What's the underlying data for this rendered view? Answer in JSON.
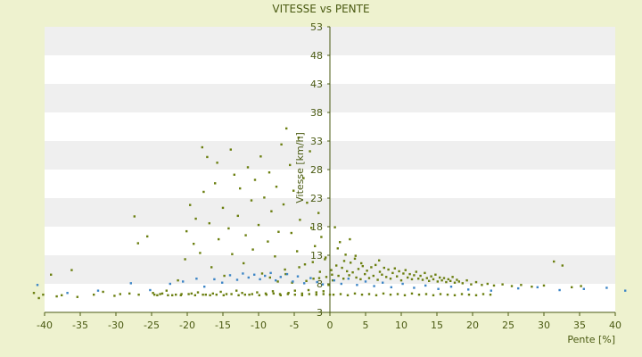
{
  "chart_data": {
    "type": "scatter",
    "title": "VITESSE vs PENTE",
    "xlabel": "Pente [%]",
    "ylabel": "Vitesse [km/h]",
    "xlim": [
      -40,
      40
    ],
    "ylim": [
      3,
      53
    ],
    "x_ticks": [
      -40,
      -35,
      -30,
      -25,
      -20,
      -15,
      -10,
      -5,
      0,
      5,
      10,
      15,
      20,
      25,
      30,
      35,
      40
    ],
    "y_ticks": [
      3,
      8,
      13,
      18,
      23,
      28,
      33,
      38,
      43,
      48,
      53
    ],
    "grid": "horizontal alternating bands",
    "legend": "none",
    "colors": {
      "background": "#eef2cf",
      "band_light": "#ffffff",
      "band_dark": "#efefef",
      "axis": "#4a5a12",
      "series_main": "#6b7f10",
      "series_secondary": "#3d85c6"
    },
    "series": [
      {
        "color": "#6b7f10",
        "points": [
          [
            -41.5,
            6.4
          ],
          [
            -40.8,
            5.5
          ],
          [
            -40.2,
            6.1
          ],
          [
            -39.1,
            9.6
          ],
          [
            -38.3,
            5.8
          ],
          [
            -37.6,
            6.0
          ],
          [
            -36.2,
            10.4
          ],
          [
            -35.4,
            5.7
          ],
          [
            -33.1,
            6.1
          ],
          [
            -31.8,
            6.6
          ],
          [
            -30.2,
            5.9
          ],
          [
            -29.4,
            6.2
          ],
          [
            -28.1,
            6.3
          ],
          [
            -27.4,
            19.8
          ],
          [
            -26.8,
            6.1
          ],
          [
            -26.9,
            15.1
          ],
          [
            -25.6,
            16.3
          ],
          [
            -24.8,
            6.4
          ],
          [
            -24.2,
            6.0
          ],
          [
            -23.5,
            6.3
          ],
          [
            -22.9,
            6.8
          ],
          [
            -22.1,
            6.0
          ],
          [
            -21.3,
            8.6
          ],
          [
            -20.8,
            6.2
          ],
          [
            -20.3,
            12.3
          ],
          [
            -20.1,
            17.2
          ],
          [
            -19.6,
            21.8
          ],
          [
            -19.4,
            6.3
          ],
          [
            -19.1,
            15.0
          ],
          [
            -18.8,
            19.4
          ],
          [
            -18.5,
            6.5
          ],
          [
            -18.2,
            13.4
          ],
          [
            -17.9,
            31.9
          ],
          [
            -17.7,
            24.1
          ],
          [
            -17.4,
            6.1
          ],
          [
            -17.2,
            30.2
          ],
          [
            -16.9,
            18.6
          ],
          [
            -16.6,
            10.9
          ],
          [
            -16.4,
            6.3
          ],
          [
            -16.1,
            25.6
          ],
          [
            -15.8,
            29.2
          ],
          [
            -15.6,
            15.8
          ],
          [
            -15.3,
            6.6
          ],
          [
            -15.0,
            21.3
          ],
          [
            -14.8,
            9.4
          ],
          [
            -14.5,
            6.2
          ],
          [
            -14.2,
            17.7
          ],
          [
            -13.9,
            31.5
          ],
          [
            -13.7,
            13.2
          ],
          [
            -13.4,
            27.1
          ],
          [
            -13.1,
            6.8
          ],
          [
            -12.9,
            19.9
          ],
          [
            -12.6,
            24.7
          ],
          [
            -12.3,
            6.4
          ],
          [
            -12.1,
            11.6
          ],
          [
            -11.8,
            16.5
          ],
          [
            -11.5,
            28.4
          ],
          [
            -11.3,
            6.1
          ],
          [
            -11.0,
            22.6
          ],
          [
            -10.8,
            14.0
          ],
          [
            -10.5,
            26.2
          ],
          [
            -10.2,
            6.5
          ],
          [
            -10.0,
            18.3
          ],
          [
            -9.7,
            30.3
          ],
          [
            -9.5,
            9.8
          ],
          [
            -9.2,
            23.1
          ],
          [
            -9.0,
            6.3
          ],
          [
            -8.7,
            15.4
          ],
          [
            -8.5,
            27.5
          ],
          [
            -8.2,
            20.7
          ],
          [
            -8.0,
            6.7
          ],
          [
            -7.7,
            12.8
          ],
          [
            -7.5,
            25.0
          ],
          [
            -7.2,
            17.1
          ],
          [
            -7.0,
            6.2
          ],
          [
            -6.8,
            32.4
          ],
          [
            -6.5,
            21.9
          ],
          [
            -6.3,
            10.5
          ],
          [
            -6.1,
            35.2
          ],
          [
            -5.8,
            6.4
          ],
          [
            -5.6,
            28.8
          ],
          [
            -5.4,
            16.9
          ],
          [
            -5.1,
            24.3
          ],
          [
            -4.9,
            6.8
          ],
          [
            -4.6,
            13.7
          ],
          [
            -4.4,
            33.6
          ],
          [
            -4.2,
            19.2
          ],
          [
            -3.9,
            6.3
          ],
          [
            -3.7,
            26.5
          ],
          [
            -3.5,
            11.4
          ],
          [
            -3.2,
            22.2
          ],
          [
            -3.0,
            6.9
          ],
          [
            -2.8,
            31.2
          ],
          [
            -2.6,
            17.8
          ],
          [
            -2.3,
            8.9
          ],
          [
            -2.1,
            14.6
          ],
          [
            -1.9,
            6.5
          ],
          [
            -1.6,
            20.4
          ],
          [
            -1.4,
            10.1
          ],
          [
            -1.2,
            16.2
          ],
          [
            -0.9,
            6.7
          ],
          [
            -0.7,
            12.3
          ],
          [
            -0.5,
            9.2
          ],
          [
            -0.2,
            7.8
          ],
          [
            0.0,
            6.1
          ],
          [
            0.2,
            10.4
          ],
          [
            0.4,
            8.6
          ],
          [
            0.7,
            17.9
          ],
          [
            0.9,
            11.2
          ],
          [
            1.2,
            9.4
          ],
          [
            1.4,
            15.3
          ],
          [
            1.7,
            10.8
          ],
          [
            1.9,
            8.9
          ],
          [
            2.2,
            13.1
          ],
          [
            2.4,
            10.2
          ],
          [
            2.7,
            9.5
          ],
          [
            2.9,
            11.7
          ],
          [
            3.2,
            10.0
          ],
          [
            3.5,
            12.4
          ],
          [
            3.7,
            9.1
          ],
          [
            4.0,
            10.6
          ],
          [
            4.3,
            8.8
          ],
          [
            4.6,
            11.1
          ],
          [
            4.9,
            9.7
          ],
          [
            5.2,
            10.3
          ],
          [
            5.5,
            9.0
          ],
          [
            5.8,
            10.9
          ],
          [
            6.1,
            9.4
          ],
          [
            6.4,
            11.3
          ],
          [
            6.7,
            8.7
          ],
          [
            7.0,
            10.1
          ],
          [
            7.3,
            9.6
          ],
          [
            7.6,
            10.8
          ],
          [
            7.9,
            9.2
          ],
          [
            8.2,
            10.5
          ],
          [
            8.5,
            8.9
          ],
          [
            8.8,
            9.9
          ],
          [
            9.1,
            10.7
          ],
          [
            9.4,
            9.3
          ],
          [
            9.7,
            10.2
          ],
          [
            10.0,
            8.6
          ],
          [
            10.3,
            9.8
          ],
          [
            10.6,
            10.4
          ],
          [
            10.9,
            9.1
          ],
          [
            11.2,
            9.7
          ],
          [
            11.5,
            8.8
          ],
          [
            11.8,
            9.5
          ],
          [
            12.1,
            10.1
          ],
          [
            12.4,
            8.9
          ],
          [
            12.7,
            9.4
          ],
          [
            13.0,
            8.7
          ],
          [
            13.3,
            9.9
          ],
          [
            13.6,
            9.0
          ],
          [
            13.9,
            8.5
          ],
          [
            14.2,
            9.3
          ],
          [
            14.5,
            8.8
          ],
          [
            14.8,
            9.6
          ],
          [
            15.1,
            8.4
          ],
          [
            15.4,
            9.1
          ],
          [
            15.7,
            8.6
          ],
          [
            16.0,
            9.0
          ],
          [
            16.3,
            8.3
          ],
          [
            16.6,
            8.8
          ],
          [
            16.9,
            8.5
          ],
          [
            17.2,
            9.2
          ],
          [
            17.5,
            8.2
          ],
          [
            17.8,
            8.7
          ],
          [
            18.1,
            8.4
          ],
          [
            18.6,
            8.1
          ],
          [
            19.2,
            8.6
          ],
          [
            19.8,
            7.9
          ],
          [
            20.5,
            8.3
          ],
          [
            21.3,
            7.8
          ],
          [
            22.1,
            8.0
          ],
          [
            23.0,
            7.7
          ],
          [
            24.2,
            7.9
          ],
          [
            25.5,
            7.6
          ],
          [
            26.8,
            7.8
          ],
          [
            28.3,
            7.5
          ],
          [
            30.0,
            7.7
          ],
          [
            31.4,
            11.9
          ],
          [
            32.6,
            11.2
          ],
          [
            33.9,
            7.4
          ],
          [
            35.2,
            7.6
          ],
          [
            -24.6,
            6.1
          ],
          [
            -23.8,
            6.2
          ],
          [
            -22.7,
            6.0
          ],
          [
            -21.6,
            6.1
          ],
          [
            -20.9,
            6.0
          ],
          [
            -19.8,
            6.2
          ],
          [
            -18.9,
            6.0
          ],
          [
            -17.8,
            6.1
          ],
          [
            -16.8,
            6.0
          ],
          [
            -15.9,
            6.1
          ],
          [
            -14.9,
            6.0
          ],
          [
            -13.8,
            6.2
          ],
          [
            -12.8,
            6.0
          ],
          [
            -11.9,
            6.1
          ],
          [
            -10.9,
            6.2
          ],
          [
            -9.9,
            6.0
          ],
          [
            -8.9,
            6.1
          ],
          [
            -7.9,
            6.3
          ],
          [
            -6.9,
            6.0
          ],
          [
            -5.9,
            6.2
          ],
          [
            -4.9,
            6.1
          ],
          [
            -3.9,
            6.0
          ],
          [
            -2.9,
            6.2
          ],
          [
            -1.9,
            6.1
          ],
          [
            -0.9,
            6.2
          ],
          [
            0.5,
            6.1
          ],
          [
            1.5,
            6.2
          ],
          [
            2.5,
            6.0
          ],
          [
            3.5,
            6.3
          ],
          [
            4.5,
            6.1
          ],
          [
            5.5,
            6.2
          ],
          [
            6.5,
            6.0
          ],
          [
            7.5,
            6.3
          ],
          [
            8.5,
            6.1
          ],
          [
            9.5,
            6.2
          ],
          [
            10.5,
            6.0
          ],
          [
            11.5,
            6.3
          ],
          [
            12.5,
            6.1
          ],
          [
            13.5,
            6.2
          ],
          [
            14.5,
            6.0
          ],
          [
            15.5,
            6.2
          ],
          [
            16.5,
            6.1
          ],
          [
            17.5,
            6.0
          ],
          [
            18.5,
            6.2
          ],
          [
            19.5,
            6.1
          ],
          [
            20.5,
            6.0
          ],
          [
            21.5,
            6.2
          ],
          [
            22.5,
            6.1
          ],
          [
            -8.4,
            9.1
          ],
          [
            -7.3,
            8.4
          ],
          [
            -6.2,
            9.7
          ],
          [
            -5.3,
            8.2
          ],
          [
            -4.3,
            10.9
          ],
          [
            -3.3,
            8.5
          ],
          [
            -2.4,
            11.8
          ],
          [
            -1.5,
            9.0
          ],
          [
            -0.6,
            12.6
          ],
          [
            0.3,
            9.6
          ],
          [
            1.1,
            14.2
          ],
          [
            2.0,
            12.0
          ],
          [
            2.8,
            15.8
          ],
          [
            3.6,
            12.9
          ],
          [
            4.4,
            11.6
          ],
          [
            6.9,
            12.1
          ]
        ]
      },
      {
        "color": "#3d85c6",
        "points": [
          [
            -41.0,
            7.8
          ],
          [
            -36.8,
            6.4
          ],
          [
            -32.5,
            6.8
          ],
          [
            -27.9,
            8.1
          ],
          [
            -25.2,
            6.9
          ],
          [
            -22.4,
            8.0
          ],
          [
            -20.6,
            8.4
          ],
          [
            -18.7,
            8.9
          ],
          [
            -17.6,
            7.5
          ],
          [
            -16.2,
            8.8
          ],
          [
            -15.1,
            8.2
          ],
          [
            -14.0,
            9.5
          ],
          [
            -13.0,
            8.7
          ],
          [
            -12.2,
            9.8
          ],
          [
            -11.4,
            9.1
          ],
          [
            -10.6,
            9.6
          ],
          [
            -9.8,
            8.8
          ],
          [
            -9.1,
            9.4
          ],
          [
            -8.3,
            9.9
          ],
          [
            -7.6,
            8.6
          ],
          [
            -6.9,
            9.2
          ],
          [
            -6.0,
            9.7
          ],
          [
            -5.2,
            8.4
          ],
          [
            -4.5,
            9.3
          ],
          [
            -3.6,
            8.1
          ],
          [
            -2.7,
            9.0
          ],
          [
            -1.8,
            8.3
          ],
          [
            -1.0,
            7.9
          ],
          [
            0.6,
            8.6
          ],
          [
            1.6,
            8.0
          ],
          [
            2.6,
            8.9
          ],
          [
            3.8,
            7.8
          ],
          [
            5.0,
            8.4
          ],
          [
            6.2,
            7.6
          ],
          [
            7.4,
            8.2
          ],
          [
            8.6,
            7.4
          ],
          [
            10.2,
            8.0
          ],
          [
            11.8,
            7.3
          ],
          [
            13.4,
            7.7
          ],
          [
            15.2,
            7.1
          ],
          [
            17.0,
            7.5
          ],
          [
            19.4,
            7.0
          ],
          [
            22.6,
            6.8
          ],
          [
            26.4,
            7.2
          ],
          [
            29.1,
            7.4
          ],
          [
            32.2,
            6.9
          ],
          [
            35.6,
            7.1
          ],
          [
            38.8,
            7.3
          ],
          [
            41.4,
            6.8
          ]
        ]
      }
    ]
  }
}
